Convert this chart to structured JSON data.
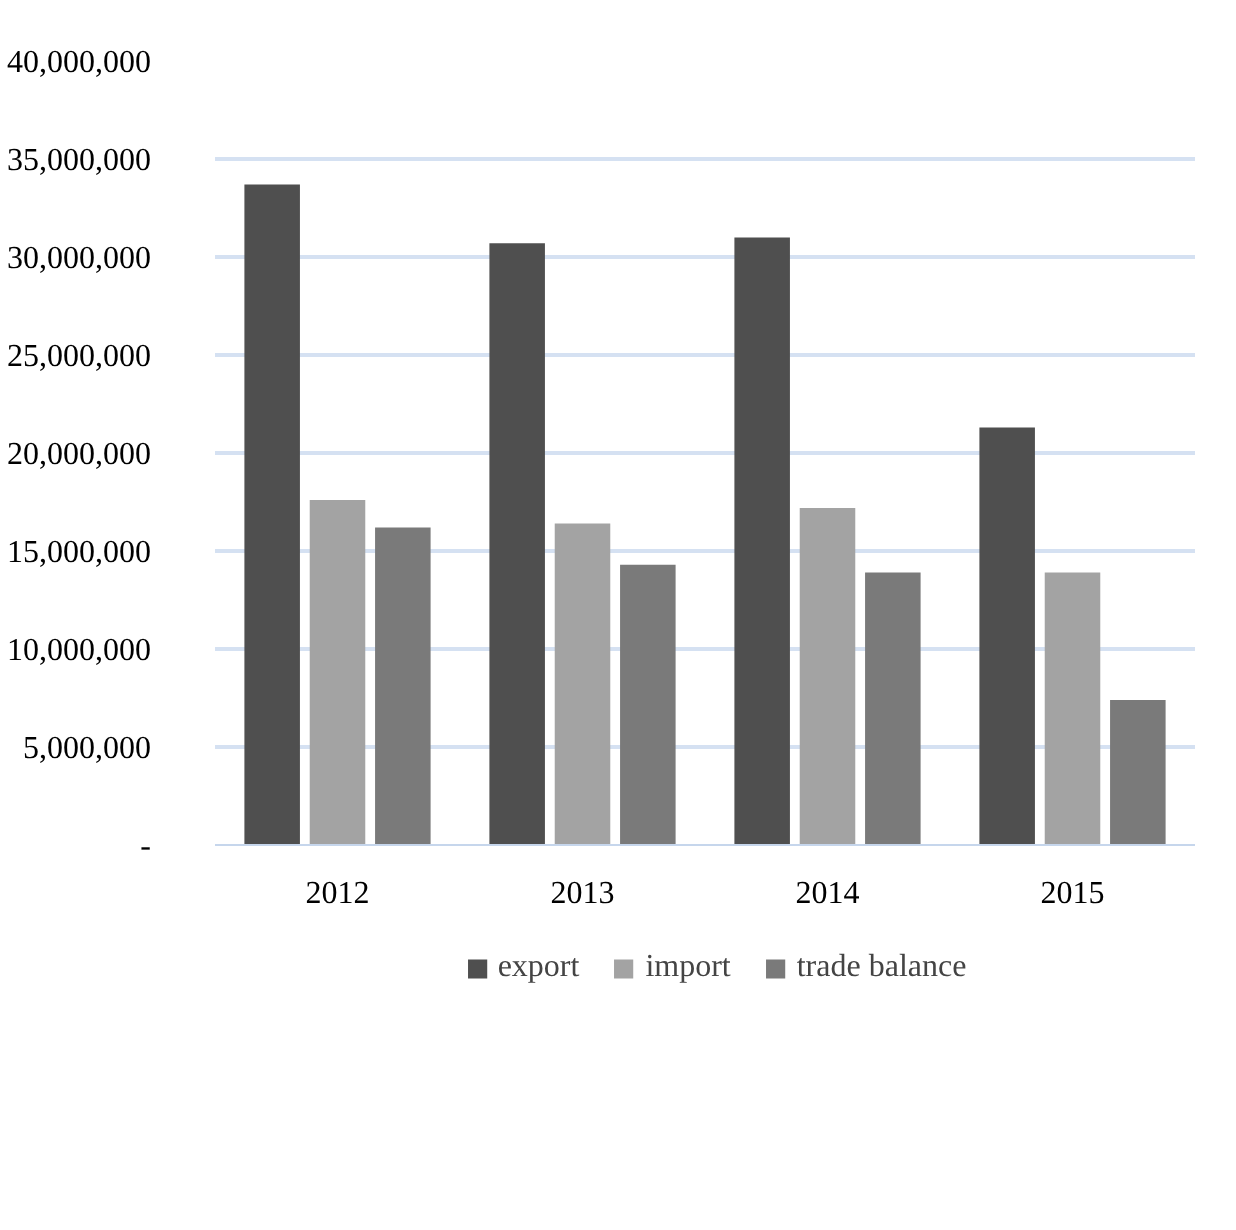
{
  "chart_data": {
    "type": "bar",
    "categories": [
      "2012",
      "2013",
      "2014",
      "2015"
    ],
    "series": [
      {
        "name": "export",
        "color": "#4f4f4f",
        "values": [
          33700000,
          30700000,
          31000000,
          21300000
        ]
      },
      {
        "name": "import",
        "color": "#a3a3a3",
        "values": [
          17600000,
          16400000,
          17200000,
          13900000
        ]
      },
      {
        "name": "trade balance",
        "color": "#7a7a7a",
        "values": [
          16200000,
          14300000,
          13900000,
          7400000
        ]
      }
    ],
    "ylim": [
      0,
      40000000
    ],
    "yticks": [
      {
        "value": 0,
        "label": "-"
      },
      {
        "value": 5000000,
        "label": "5,000,000"
      },
      {
        "value": 10000000,
        "label": "10,000,000"
      },
      {
        "value": 15000000,
        "label": "15,000,000"
      },
      {
        "value": 20000000,
        "label": "20,000,000"
      },
      {
        "value": 25000000,
        "label": "25,000,000"
      },
      {
        "value": 30000000,
        "label": "30,000,000"
      },
      {
        "value": 35000000,
        "label": "35,000,000"
      },
      {
        "value": 40000000,
        "label": "40,000,000"
      }
    ],
    "grid": "y",
    "legend": "bottom"
  }
}
